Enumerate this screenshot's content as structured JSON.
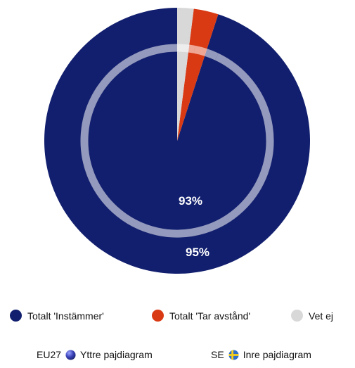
{
  "chart_data": {
    "type": "pie",
    "title": "",
    "categories": [
      "Totalt 'Instämmer'",
      "Totalt 'Tar avstånd'",
      "Vet ej"
    ],
    "colors": [
      "#121f6e",
      "#d93a14",
      "#d8d8d8"
    ],
    "series": [
      {
        "name": "EU27",
        "ring": "outer",
        "values": [
          95,
          3,
          2
        ],
        "labels": [
          "95%",
          "",
          ""
        ]
      },
      {
        "name": "SE",
        "ring": "inner",
        "values": [
          93,
          4,
          3
        ],
        "labels": [
          "93%",
          "",
          ""
        ]
      }
    ],
    "legend_position": "bottom"
  },
  "footer": {
    "eu_code": "EU27",
    "eu_text": "Yttre pajdiagram",
    "se_code": "SE",
    "se_text": "Inre pajdiagram"
  },
  "icons": {
    "eu": "eu-flag-icon",
    "se": "sweden-flag-icon"
  }
}
